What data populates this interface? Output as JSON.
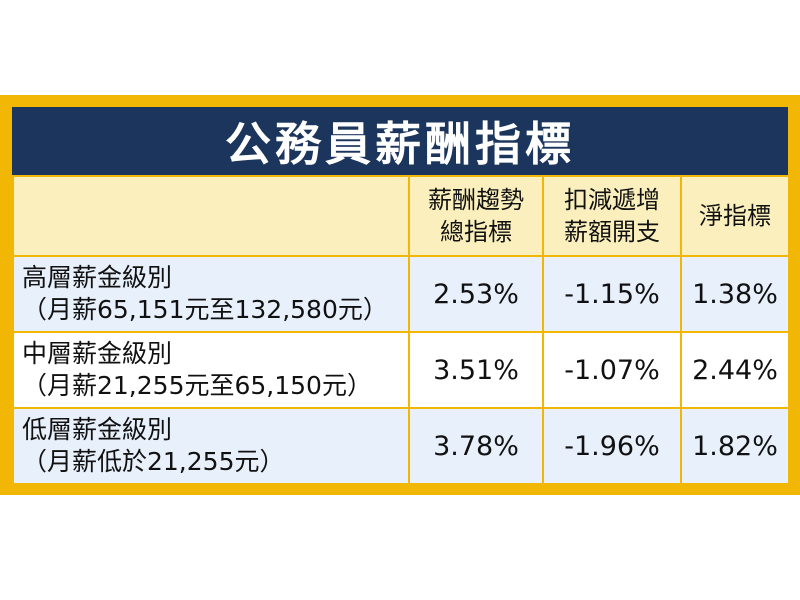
{
  "title": "公務員薪酬指標",
  "colors": {
    "frame": "#f2b705",
    "title_bg": "#1b355c",
    "header_bg": "#fbf0bd",
    "row_tint": "#e8f0fb"
  },
  "table": {
    "headers": [
      {
        "line1": "薪酬趨勢",
        "line2": "總指標"
      },
      {
        "line1": "扣減遞增",
        "line2": "薪額開支"
      },
      {
        "line1": "淨指標",
        "line2": ""
      }
    ],
    "rows": [
      {
        "label1": "高層薪金級別",
        "label2": "（月薪65,151元至132,580元）",
        "values": [
          "2.53%",
          "-1.15%",
          "1.38%"
        ]
      },
      {
        "label1": "中層薪金級別",
        "label2": "（月薪21,255元至65,150元）",
        "values": [
          "3.51%",
          "-1.07%",
          "2.44%"
        ]
      },
      {
        "label1": "低層薪金級別",
        "label2": "（月薪低於21,255元）",
        "values": [
          "3.78%",
          "-1.96%",
          "1.82%"
        ]
      }
    ]
  }
}
